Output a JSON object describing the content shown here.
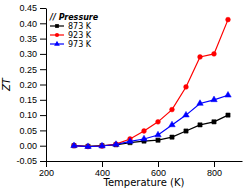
{
  "chart_data": {
    "type": "line",
    "xlabel": "Temperature (K)",
    "ylabel": "ZT",
    "legend_title": "// Pressure",
    "legend": "upper left",
    "grid": false,
    "xlim": [
      200,
      900
    ],
    "ylim": [
      -0.05,
      0.45
    ],
    "xticks": [
      200,
      400,
      600,
      800
    ],
    "yticks": [
      -0.05,
      {
        "value": 0.0,
        "label": "0.00"
      },
      0.05,
      {
        "value": 0.1,
        "label": "0.10"
      },
      0.15,
      {
        "value": 0.2,
        "label": "0.20"
      },
      0.25,
      {
        "value": 0.3,
        "label": "0.30"
      },
      0.35,
      {
        "value": 0.4,
        "label": "0.40"
      },
      0.45
    ],
    "x": [
      300,
      350,
      400,
      450,
      500,
      550,
      600,
      650,
      700,
      750,
      800,
      850
    ],
    "series": [
      {
        "name": "873 K",
        "color": "#000000",
        "marker": "square",
        "values": [
          0.0,
          -0.002,
          0.0,
          0.003,
          0.01,
          0.015,
          0.018,
          0.028,
          0.048,
          0.068,
          0.078,
          0.1
        ]
      },
      {
        "name": "923 K",
        "color": "#ff0000",
        "marker": "circle",
        "values": [
          0.0,
          -0.003,
          -0.001,
          0.005,
          0.022,
          0.048,
          0.078,
          0.118,
          0.192,
          0.29,
          0.3,
          0.412
        ]
      },
      {
        "name": "973 K",
        "color": "#0000ff",
        "marker": "triangle",
        "values": [
          0.0,
          -0.003,
          -0.001,
          0.004,
          0.014,
          0.022,
          0.035,
          0.068,
          0.1,
          0.138,
          0.15,
          0.165
        ]
      }
    ]
  }
}
